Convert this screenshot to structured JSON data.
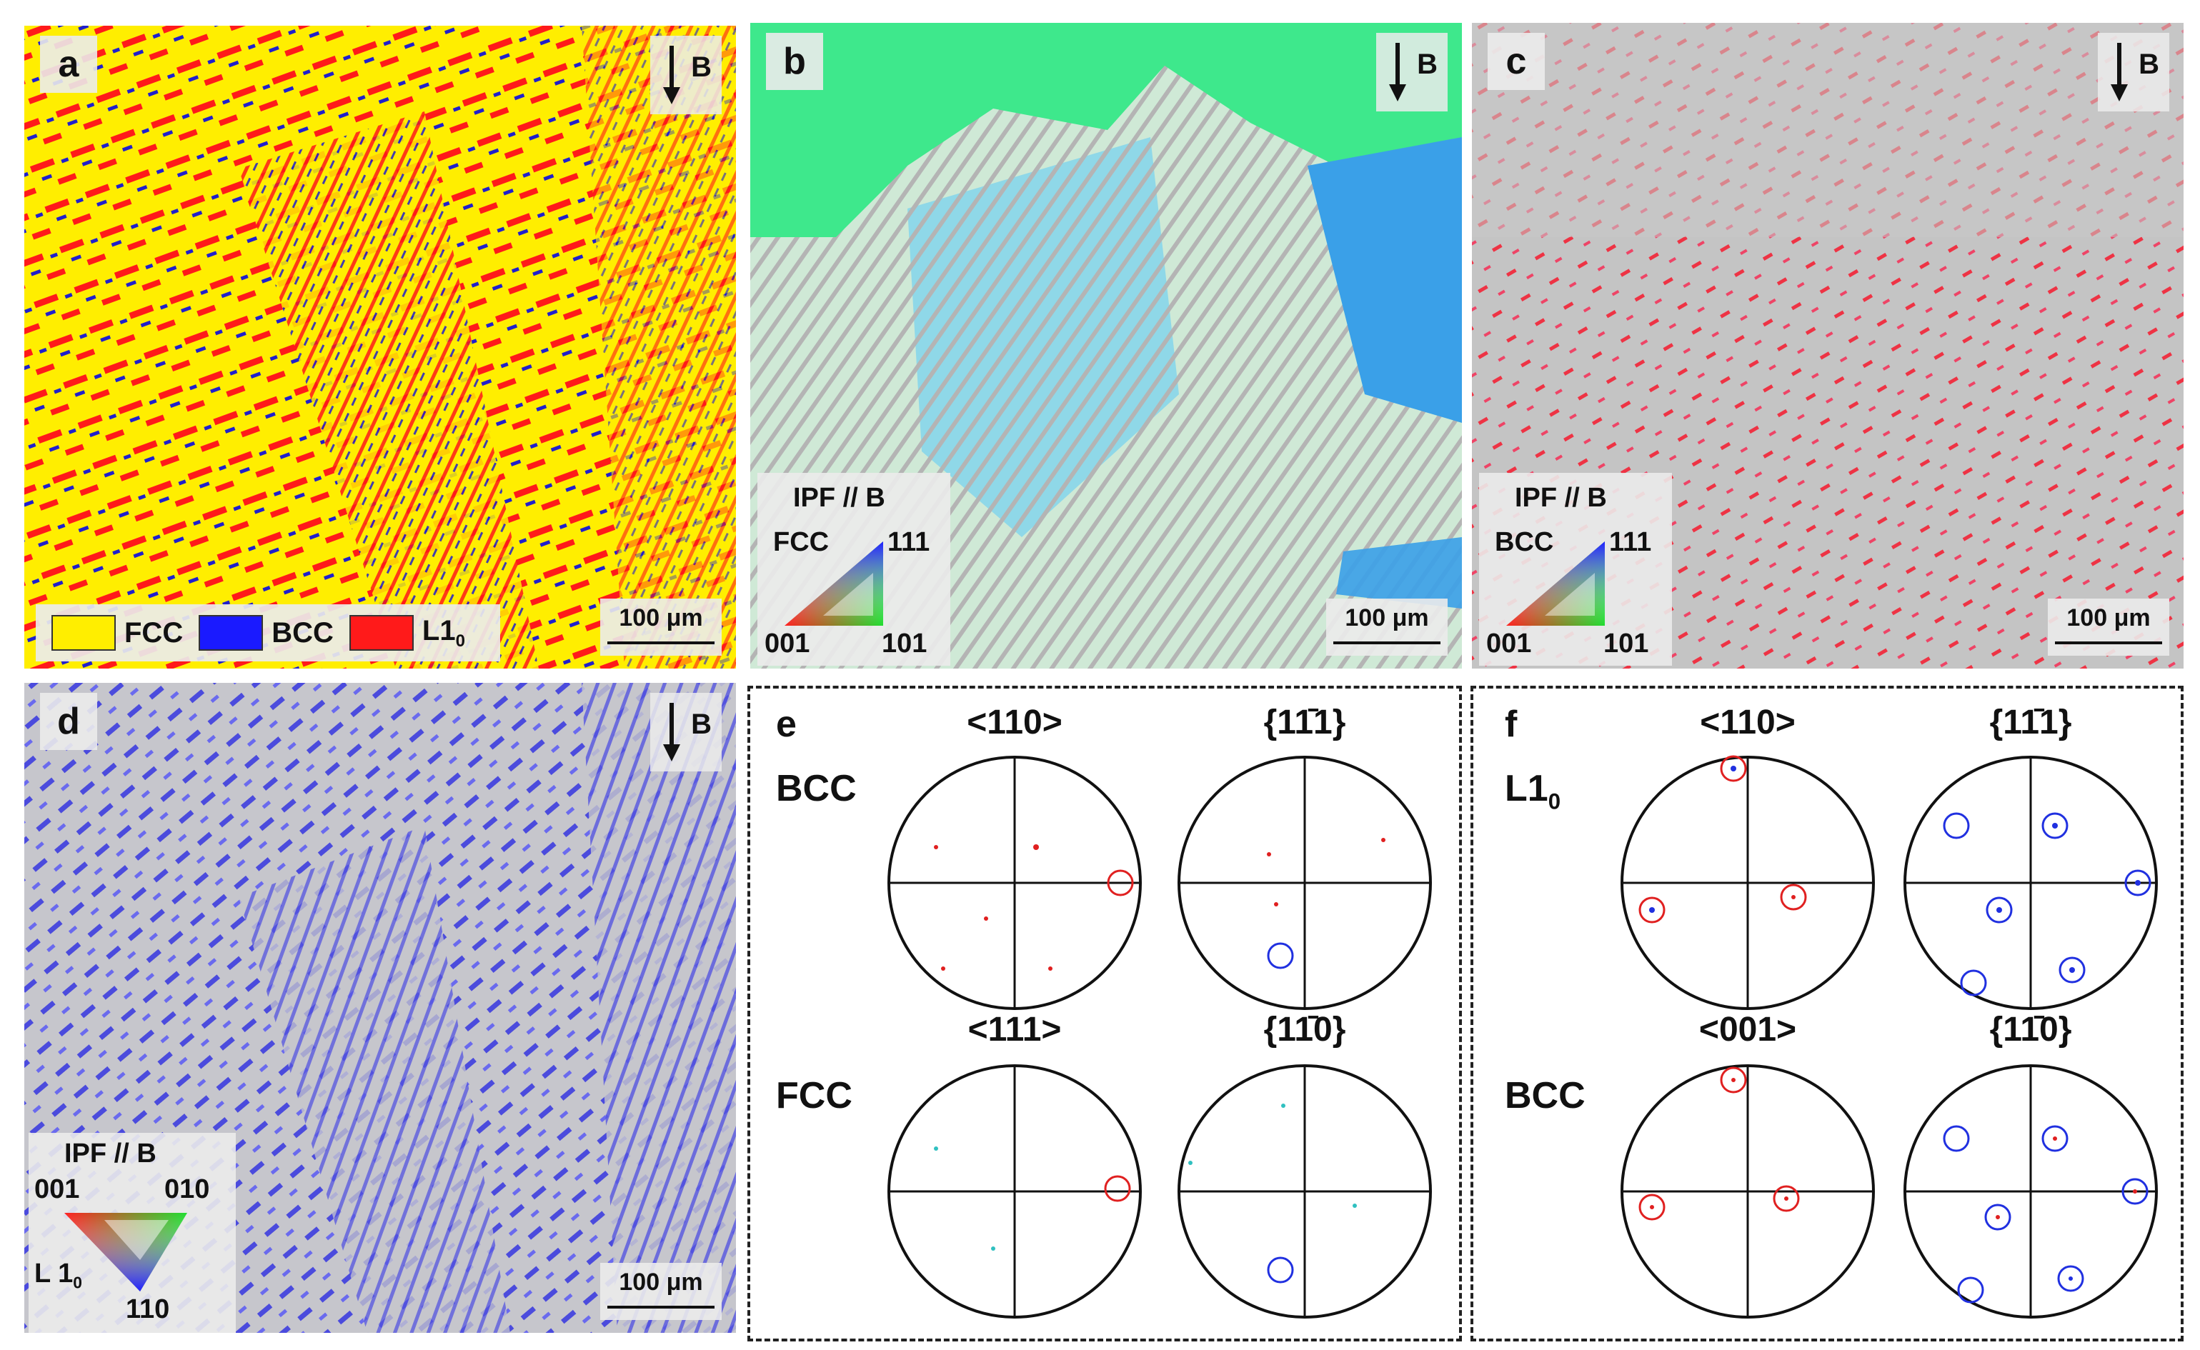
{
  "panels": {
    "a": {
      "letter": "a",
      "arrow": "B",
      "scale": "100 μm",
      "legend": [
        {
          "label": "FCC",
          "color": "#ffee00"
        },
        {
          "label": "BCC",
          "color": "#1a1aff"
        },
        {
          "label": "L1",
          "sub": "0",
          "color": "#ff1a1a"
        }
      ]
    },
    "b": {
      "letter": "b",
      "arrow": "B",
      "scale": "100 μm",
      "ipf": {
        "title": "IPF // B",
        "phase": "FCC",
        "c001": "001",
        "c101": "101",
        "c111": "111"
      }
    },
    "c": {
      "letter": "c",
      "arrow": "B",
      "scale": "100 μm",
      "ipf": {
        "title": "IPF // B",
        "phase": "BCC",
        "c001": "001",
        "c101": "101",
        "c111": "111"
      }
    },
    "d": {
      "letter": "d",
      "arrow": "B",
      "scale": "100 μm",
      "ipf": {
        "title": "IPF // B",
        "phase": "L 1",
        "phase_sub": "0",
        "c001": "001",
        "c010": "010",
        "c110": "110"
      }
    }
  },
  "pole_figures": {
    "e": {
      "letter": "e",
      "row1": {
        "label": "BCC",
        "h1": "<110>",
        "h2": "{11̄1}"
      },
      "row2": {
        "label": "FCC",
        "h1": "<111>",
        "h2": "{11̄0}"
      }
    },
    "f": {
      "letter": "f",
      "row1": {
        "label": "L1",
        "label_sub": "0",
        "h1": "<110>",
        "h2": "{11̄1}"
      },
      "row2": {
        "label": "BCC",
        "h1": "<001>",
        "h2": "{11̄0}"
      }
    }
  },
  "colors": {
    "fcc": "#ffee00",
    "bcc": "#1a1aff",
    "l10": "#ff1a1a",
    "circle_red": "#e02020",
    "circle_blue": "#2030e0"
  }
}
